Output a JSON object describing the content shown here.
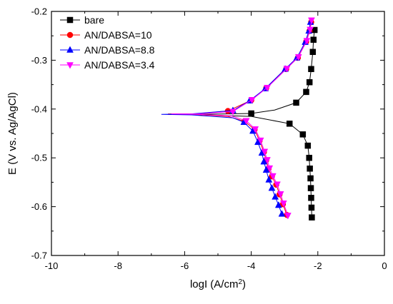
{
  "chart_data": {
    "type": "line",
    "xlabel": "logI (A/cm",
    "xlabel_sup": "2",
    "xlabel_tail": ")",
    "ylabel": "E (V vs. Ag/AgCl)",
    "xlim": [
      -10,
      0
    ],
    "ylim": [
      -0.7,
      -0.2
    ],
    "xticks": [
      -10,
      -8,
      -6,
      -4,
      -2,
      0
    ],
    "xtick_labels": [
      "-10",
      "-8",
      "-6",
      "-4",
      "-2",
      "0"
    ],
    "yticks": [
      -0.7,
      -0.6,
      -0.5,
      -0.4,
      -0.3,
      -0.2
    ],
    "ytick_labels": [
      "-0.7",
      "-0.6",
      "-0.5",
      "-0.4",
      "-0.3",
      "-0.2"
    ],
    "grid": false,
    "legend_position": "top-left",
    "series": [
      {
        "name": "bare",
        "color": "#000000",
        "marker": "square",
        "points": [
          [
            -2.1,
            -0.238
          ],
          [
            -2.13,
            -0.258
          ],
          [
            -2.15,
            -0.283
          ],
          [
            -2.2,
            -0.318
          ],
          [
            -2.25,
            -0.345
          ],
          [
            -2.35,
            -0.365
          ],
          [
            -2.65,
            -0.387
          ],
          [
            -3.3,
            -0.402
          ],
          [
            -4.0,
            -0.409
          ],
          [
            -5.5,
            -0.411
          ],
          [
            -6.0,
            -0.411
          ],
          [
            -5.5,
            -0.412
          ],
          [
            -4.0,
            -0.415
          ],
          [
            -2.85,
            -0.43
          ],
          [
            -2.45,
            -0.452
          ],
          [
            -2.3,
            -0.475
          ],
          [
            -2.26,
            -0.5
          ],
          [
            -2.24,
            -0.522
          ],
          [
            -2.22,
            -0.542
          ],
          [
            -2.21,
            -0.562
          ],
          [
            -2.2,
            -0.582
          ],
          [
            -2.19,
            -0.602
          ],
          [
            -2.18,
            -0.622
          ]
        ],
        "markers": [
          [
            -2.1,
            -0.238
          ],
          [
            -2.13,
            -0.258
          ],
          [
            -2.15,
            -0.283
          ],
          [
            -2.2,
            -0.318
          ],
          [
            -2.25,
            -0.345
          ],
          [
            -2.35,
            -0.365
          ],
          [
            -2.65,
            -0.387
          ],
          [
            -4.0,
            -0.409
          ],
          [
            -2.85,
            -0.43
          ],
          [
            -2.45,
            -0.452
          ],
          [
            -2.3,
            -0.475
          ],
          [
            -2.26,
            -0.5
          ],
          [
            -2.24,
            -0.522
          ],
          [
            -2.22,
            -0.542
          ],
          [
            -2.21,
            -0.562
          ],
          [
            -2.2,
            -0.582
          ],
          [
            -2.19,
            -0.602
          ],
          [
            -2.18,
            -0.622
          ]
        ]
      },
      {
        "name": "AN/DABSA=10",
        "color": "#ff0000",
        "marker": "circle",
        "points": [
          [
            -2.2,
            -0.222
          ],
          [
            -2.25,
            -0.24
          ],
          [
            -2.35,
            -0.262
          ],
          [
            -2.6,
            -0.295
          ],
          [
            -2.95,
            -0.318
          ],
          [
            -3.55,
            -0.357
          ],
          [
            -4.0,
            -0.382
          ],
          [
            -4.7,
            -0.404
          ],
          [
            -5.7,
            -0.41
          ],
          [
            -6.5,
            -0.41
          ],
          [
            -5.7,
            -0.411
          ],
          [
            -4.7,
            -0.415
          ],
          [
            -4.2,
            -0.425
          ],
          [
            -3.9,
            -0.442
          ],
          [
            -3.75,
            -0.465
          ],
          [
            -3.62,
            -0.488
          ],
          [
            -3.55,
            -0.505
          ],
          [
            -3.48,
            -0.522
          ],
          [
            -3.38,
            -0.538
          ],
          [
            -3.25,
            -0.555
          ],
          [
            -3.15,
            -0.575
          ],
          [
            -3.05,
            -0.595
          ],
          [
            -2.93,
            -0.617
          ]
        ],
        "markers": [
          [
            -2.2,
            -0.222
          ],
          [
            -2.25,
            -0.24
          ],
          [
            -2.35,
            -0.262
          ],
          [
            -2.6,
            -0.295
          ],
          [
            -2.95,
            -0.318
          ],
          [
            -3.55,
            -0.357
          ],
          [
            -4.0,
            -0.382
          ],
          [
            -4.7,
            -0.404
          ],
          [
            -4.2,
            -0.425
          ],
          [
            -3.9,
            -0.442
          ],
          [
            -3.75,
            -0.465
          ],
          [
            -3.62,
            -0.488
          ],
          [
            -3.55,
            -0.505
          ],
          [
            -3.48,
            -0.522
          ],
          [
            -3.38,
            -0.538
          ],
          [
            -3.25,
            -0.555
          ],
          [
            -3.15,
            -0.575
          ],
          [
            -3.05,
            -0.595
          ],
          [
            -2.93,
            -0.617
          ]
        ]
      },
      {
        "name": "AN/DABSA=8.8",
        "color": "#0000ff",
        "marker": "triangle-up",
        "points": [
          [
            -2.22,
            -0.222
          ],
          [
            -2.27,
            -0.24
          ],
          [
            -2.38,
            -0.263
          ],
          [
            -2.63,
            -0.295
          ],
          [
            -2.98,
            -0.318
          ],
          [
            -3.58,
            -0.358
          ],
          [
            -4.05,
            -0.383
          ],
          [
            -4.55,
            -0.403
          ],
          [
            -5.8,
            -0.41
          ],
          [
            -6.7,
            -0.411
          ],
          [
            -5.8,
            -0.412
          ],
          [
            -4.55,
            -0.418
          ],
          [
            -4.22,
            -0.427
          ],
          [
            -3.95,
            -0.445
          ],
          [
            -3.8,
            -0.468
          ],
          [
            -3.68,
            -0.49
          ],
          [
            -3.62,
            -0.508
          ],
          [
            -3.55,
            -0.525
          ],
          [
            -3.47,
            -0.545
          ],
          [
            -3.38,
            -0.562
          ],
          [
            -3.28,
            -0.58
          ],
          [
            -3.18,
            -0.597
          ],
          [
            -3.08,
            -0.615
          ]
        ],
        "markers": [
          [
            -2.22,
            -0.222
          ],
          [
            -2.27,
            -0.24
          ],
          [
            -2.38,
            -0.263
          ],
          [
            -2.63,
            -0.295
          ],
          [
            -2.98,
            -0.318
          ],
          [
            -3.58,
            -0.358
          ],
          [
            -4.05,
            -0.383
          ],
          [
            -4.55,
            -0.403
          ],
          [
            -4.22,
            -0.427
          ],
          [
            -3.95,
            -0.445
          ],
          [
            -3.8,
            -0.468
          ],
          [
            -3.68,
            -0.49
          ],
          [
            -3.62,
            -0.508
          ],
          [
            -3.55,
            -0.525
          ],
          [
            -3.47,
            -0.545
          ],
          [
            -3.38,
            -0.562
          ],
          [
            -3.28,
            -0.58
          ],
          [
            -3.18,
            -0.597
          ],
          [
            -3.08,
            -0.615
          ]
        ]
      },
      {
        "name": "AN/DABSA=3.4",
        "color": "#ff00ff",
        "marker": "triangle-down",
        "points": [
          [
            -2.19,
            -0.218
          ],
          [
            -2.23,
            -0.237
          ],
          [
            -2.33,
            -0.26
          ],
          [
            -2.58,
            -0.293
          ],
          [
            -2.93,
            -0.317
          ],
          [
            -3.52,
            -0.356
          ],
          [
            -3.98,
            -0.381
          ],
          [
            -4.55,
            -0.405
          ],
          [
            -5.6,
            -0.41
          ],
          [
            -6.4,
            -0.41
          ],
          [
            -5.6,
            -0.411
          ],
          [
            -4.6,
            -0.414
          ],
          [
            -4.15,
            -0.424
          ],
          [
            -3.88,
            -0.441
          ],
          [
            -3.72,
            -0.464
          ],
          [
            -3.6,
            -0.487
          ],
          [
            -3.52,
            -0.504
          ],
          [
            -3.45,
            -0.521
          ],
          [
            -3.35,
            -0.537
          ],
          [
            -3.22,
            -0.554
          ],
          [
            -3.12,
            -0.574
          ],
          [
            -3.03,
            -0.593
          ],
          [
            -2.9,
            -0.618
          ]
        ],
        "markers": [
          [
            -2.19,
            -0.218
          ],
          [
            -2.23,
            -0.237
          ],
          [
            -2.33,
            -0.26
          ],
          [
            -2.58,
            -0.293
          ],
          [
            -2.93,
            -0.317
          ],
          [
            -3.52,
            -0.356
          ],
          [
            -3.98,
            -0.381
          ],
          [
            -4.55,
            -0.405
          ],
          [
            -4.15,
            -0.424
          ],
          [
            -3.88,
            -0.441
          ],
          [
            -3.72,
            -0.464
          ],
          [
            -3.6,
            -0.487
          ],
          [
            -3.52,
            -0.504
          ],
          [
            -3.45,
            -0.521
          ],
          [
            -3.35,
            -0.537
          ],
          [
            -3.22,
            -0.554
          ],
          [
            -3.12,
            -0.574
          ],
          [
            -3.03,
            -0.593
          ],
          [
            -2.9,
            -0.618
          ]
        ]
      }
    ]
  }
}
